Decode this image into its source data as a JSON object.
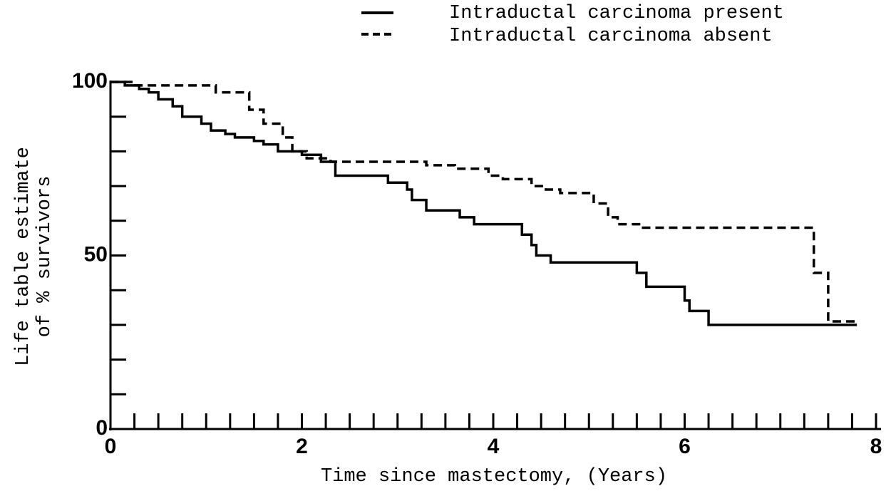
{
  "chart_data": {
    "type": "step",
    "x_label": "Time since mastectomy, (Years)",
    "y_label": [
      "Life table estimate",
      "of % survivors"
    ],
    "xlim": [
      0,
      8
    ],
    "xticks": [
      0,
      2,
      4,
      6,
      8
    ],
    "xminorticks": [
      0.25,
      0.5,
      0.75,
      1,
      1.25,
      1.5,
      1.75,
      2,
      2.25,
      2.5,
      2.75,
      3,
      3.25,
      3.5,
      3.75,
      4,
      4.25,
      4.5,
      4.75,
      5,
      5.25,
      5.5,
      5.75,
      6,
      6.25,
      6.5,
      6.75,
      7,
      7.25,
      7.5,
      7.75
    ],
    "ylim": [
      0,
      100
    ],
    "yticks": [
      0,
      50,
      100
    ],
    "yminorticks": [
      10,
      20,
      30,
      40,
      50,
      60,
      70,
      80,
      90
    ],
    "series": [
      {
        "name": "Intraductal carcinoma present",
        "color": "#000000",
        "dash": false,
        "x": [
          0,
          0.15,
          0.3,
          0.4,
          0.5,
          0.65,
          0.75,
          0.95,
          1.05,
          1.2,
          1.3,
          1.5,
          1.6,
          1.75,
          2.0,
          2.2,
          2.35,
          2.9,
          3.1,
          3.15,
          3.3,
          3.65,
          3.8,
          4.3,
          4.4,
          4.45,
          4.6,
          5.5,
          5.6,
          6.0,
          6.05,
          6.25,
          7.8
        ],
        "values": [
          100,
          99,
          98,
          97,
          95,
          93,
          90,
          88,
          86,
          85,
          84,
          83,
          82,
          80,
          79,
          77,
          73,
          71,
          69,
          66,
          63,
          61,
          59,
          56,
          53,
          50,
          48,
          45,
          41,
          37,
          34,
          30,
          30
        ]
      },
      {
        "name": "Intraductal carcinoma absent",
        "color": "#000000",
        "dash": true,
        "x": [
          0,
          0.25,
          1.1,
          1.45,
          1.6,
          1.8,
          1.9,
          2.05,
          2.3,
          3.3,
          3.6,
          3.95,
          4.1,
          4.4,
          4.55,
          4.7,
          5.05,
          5.2,
          5.3,
          5.55,
          7.35,
          7.5,
          7.8
        ],
        "values": [
          100,
          99,
          97,
          92,
          88,
          84,
          80,
          78,
          77,
          76,
          75,
          73,
          72,
          70,
          69,
          68,
          65,
          61,
          59,
          58,
          45,
          31,
          31
        ]
      }
    ]
  }
}
